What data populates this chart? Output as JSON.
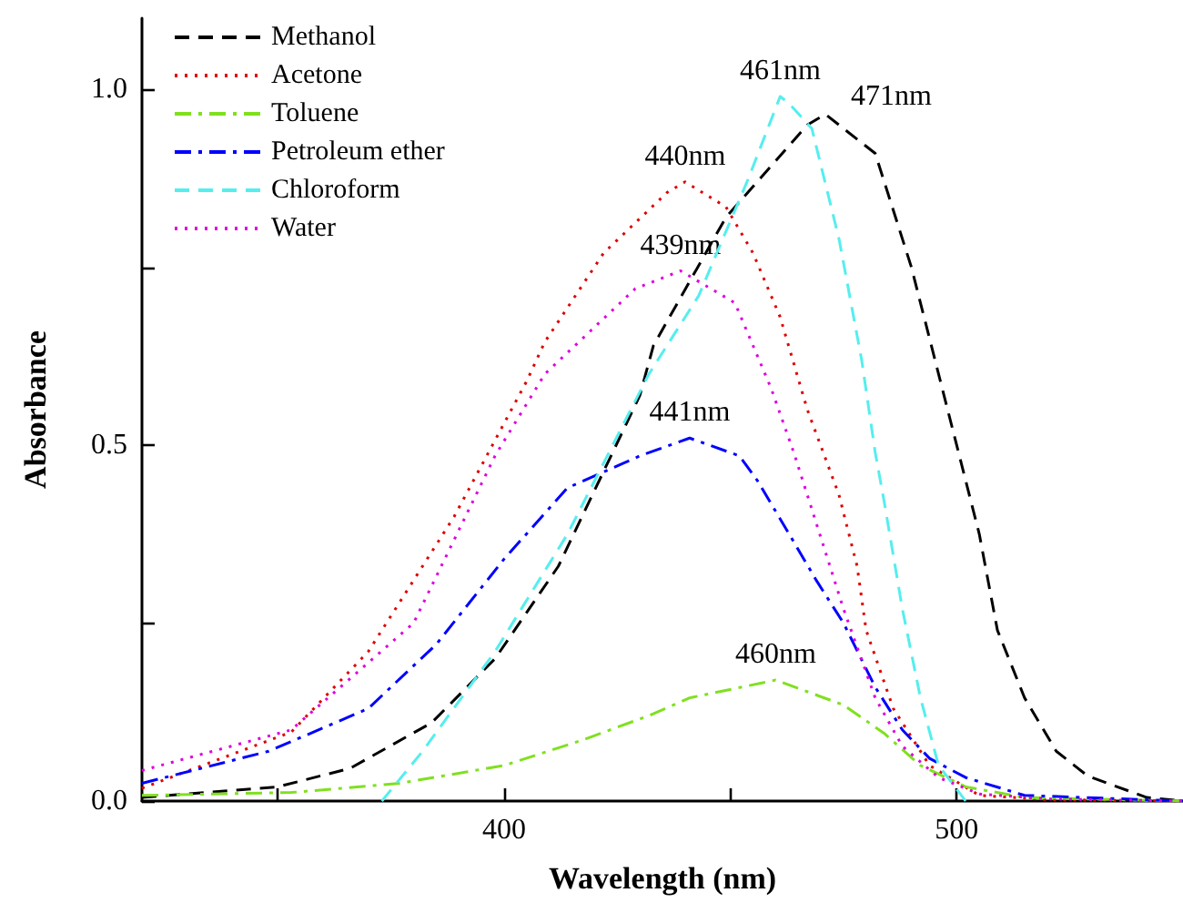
{
  "chart_data": {
    "type": "line",
    "xlabel": "Wavelength (nm)",
    "ylabel": "Absorbance",
    "xlim": [
      320,
      550
    ],
    "xticks": [
      {
        "value": 350,
        "label": null
      },
      400,
      {
        "value": 450,
        "label": null
      },
      500
    ],
    "ylim": [
      0,
      1.1
    ],
    "yticks": [
      {
        "value": 0,
        "label": "0.0"
      },
      {
        "value": 0.25,
        "label": null
      },
      {
        "value": 0.5,
        "label": "0.5"
      },
      {
        "value": 0.75,
        "label": null
      },
      {
        "value": 1,
        "label": "1.0"
      }
    ],
    "grid": false,
    "legend": "top left",
    "marker": "none",
    "series": [
      {
        "name": "Methanol",
        "color": "#000000",
        "line_style": "dashed",
        "x": [
          320,
          350,
          366,
          384,
          398,
          412,
          430,
          433,
          449,
          467,
          471,
          482,
          490,
          498,
          505,
          509,
          515,
          522,
          529,
          542,
          550
        ],
        "values": [
          0.005,
          0.02,
          0.046,
          0.11,
          0.2,
          0.33,
          0.57,
          0.64,
          0.82,
          0.95,
          0.965,
          0.91,
          0.75,
          0.55,
          0.375,
          0.24,
          0.145,
          0.07,
          0.035,
          0.005,
          0
        ]
      },
      {
        "name": "Acetone",
        "color": "#dd0000",
        "line_style": "dotted",
        "x": [
          320,
          353,
          370,
          389,
          405,
          409,
          422,
          436,
          440,
          449,
          455,
          461,
          467,
          474,
          478,
          480,
          486,
          494,
          505,
          520,
          550
        ],
        "values": [
          0.018,
          0.097,
          0.21,
          0.4,
          0.59,
          0.645,
          0.77,
          0.855,
          0.87,
          0.835,
          0.77,
          0.68,
          0.55,
          0.43,
          0.33,
          0.24,
          0.13,
          0.05,
          0.008,
          0.002,
          0
        ]
      },
      {
        "name": "Toluene",
        "color": "#80e020",
        "line_style": "dashdot",
        "x": [
          320,
          353,
          377,
          400,
          417,
          432,
          441,
          460,
          475,
          484,
          492,
          502,
          515,
          550
        ],
        "values": [
          0.008,
          0.012,
          0.025,
          0.05,
          0.085,
          0.12,
          0.145,
          0.17,
          0.135,
          0.095,
          0.05,
          0.02,
          0.005,
          0
        ]
      },
      {
        "name": "Petroleum ether",
        "color": "#0000ff",
        "line_style": "dashdot",
        "x": [
          320,
          348,
          370,
          385,
          400,
          414,
          430,
          441,
          452,
          456,
          463,
          469,
          475,
          482,
          488,
          494,
          502,
          515,
          550
        ],
        "values": [
          0.025,
          0.07,
          0.13,
          0.22,
          0.34,
          0.44,
          0.485,
          0.51,
          0.485,
          0.45,
          0.375,
          0.31,
          0.25,
          0.16,
          0.1,
          0.06,
          0.033,
          0.008,
          0
        ]
      },
      {
        "name": "Chloroform",
        "color": "#55eeee",
        "line_style": "dashed",
        "x": [
          373,
          382,
          398,
          414,
          432,
          443,
          454,
          461,
          463,
          468,
          474,
          479,
          482,
          484,
          488,
          492,
          496,
          502
        ],
        "values": [
          0,
          0.07,
          0.21,
          0.375,
          0.6,
          0.71,
          0.875,
          0.99,
          0.98,
          0.945,
          0.79,
          0.62,
          0.49,
          0.42,
          0.27,
          0.145,
          0.05,
          0
        ]
      },
      {
        "name": "Water",
        "color": "#dd00dd",
        "line_style": "dotted",
        "x": [
          320,
          353,
          380,
          398,
          409,
          429,
          439,
          451,
          459,
          464,
          467,
          475,
          482,
          488,
          496,
          505,
          520,
          550
        ],
        "values": [
          0.043,
          0.1,
          0.25,
          0.485,
          0.6,
          0.72,
          0.745,
          0.7,
          0.58,
          0.49,
          0.43,
          0.27,
          0.145,
          0.077,
          0.033,
          0.01,
          0.003,
          0
        ]
      }
    ],
    "annotations": [
      {
        "text": "461nm",
        "x": 461,
        "y": 0.99
      },
      {
        "text": "471nm",
        "x": 471,
        "y": 0.965
      },
      {
        "text": "440nm",
        "x": 440,
        "y": 0.87
      },
      {
        "text": "439nm",
        "x": 439,
        "y": 0.745
      },
      {
        "text": "441nm",
        "x": 441,
        "y": 0.51
      },
      {
        "text": "460nm",
        "x": 460,
        "y": 0.17
      }
    ]
  }
}
